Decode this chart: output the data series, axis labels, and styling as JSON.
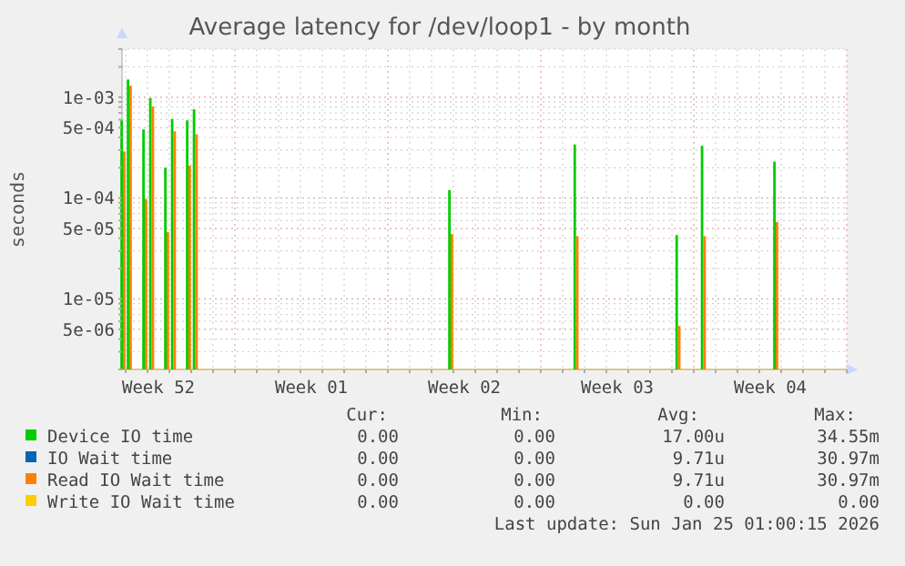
{
  "chart_data": {
    "type": "bar",
    "title": "Average latency for /dev/loop1 - by month",
    "ylabel": "seconds",
    "log": "y",
    "grid": true,
    "legend": "bottom",
    "xlim": [
      "2025-12-23T20:00",
      "2026-01-26T00:00"
    ],
    "ylim": [
      2e-06,
      0.003
    ],
    "xticks": [
      {
        "value": "2025-12-24T00:00",
        "label": null
      },
      {
        "value": "2025-12-25T00:00",
        "label": null
      },
      {
        "value": "2025-12-25T12:00",
        "label": "Week 52"
      },
      {
        "value": "2025-12-26T00:00",
        "label": null
      },
      {
        "value": "2025-12-27T00:00",
        "label": null
      },
      {
        "value": "2025-12-28T00:00",
        "label": null
      },
      {
        "value": "2025-12-29T00:00",
        "label": null
      },
      {
        "value": "2025-12-30T00:00",
        "label": null
      },
      {
        "value": "2025-12-31T00:00",
        "label": null
      },
      {
        "value": "2026-01-01T00:00",
        "label": null
      },
      {
        "value": "2026-01-01T12:00",
        "label": "Week 01"
      },
      {
        "value": "2026-01-02T00:00",
        "label": null
      },
      {
        "value": "2026-01-03T00:00",
        "label": null
      },
      {
        "value": "2026-01-04T00:00",
        "label": null
      },
      {
        "value": "2026-01-05T00:00",
        "label": null
      },
      {
        "value": "2026-01-06T00:00",
        "label": null
      },
      {
        "value": "2026-01-07T00:00",
        "label": null
      },
      {
        "value": "2026-01-08T00:00",
        "label": null
      },
      {
        "value": "2026-01-08T12:00",
        "label": "Week 02"
      },
      {
        "value": "2026-01-09T00:00",
        "label": null
      },
      {
        "value": "2026-01-10T00:00",
        "label": null
      },
      {
        "value": "2026-01-11T00:00",
        "label": null
      },
      {
        "value": "2026-01-12T00:00",
        "label": null
      },
      {
        "value": "2026-01-13T00:00",
        "label": null
      },
      {
        "value": "2026-01-14T00:00",
        "label": null
      },
      {
        "value": "2026-01-15T00:00",
        "label": null
      },
      {
        "value": "2026-01-15T12:00",
        "label": "Week 03"
      },
      {
        "value": "2026-01-16T00:00",
        "label": null
      },
      {
        "value": "2026-01-17T00:00",
        "label": null
      },
      {
        "value": "2026-01-18T00:00",
        "label": null
      },
      {
        "value": "2026-01-19T00:00",
        "label": null
      },
      {
        "value": "2026-01-20T00:00",
        "label": null
      },
      {
        "value": "2026-01-21T00:00",
        "label": null
      },
      {
        "value": "2026-01-22T00:00",
        "label": null
      },
      {
        "value": "2026-01-22T12:00",
        "label": "Week 04"
      },
      {
        "value": "2026-01-23T00:00",
        "label": null
      },
      {
        "value": "2026-01-24T00:00",
        "label": null
      },
      {
        "value": "2026-01-25T00:00",
        "label": null
      },
      {
        "value": "2026-01-26T00:00",
        "label": null
      }
    ],
    "yticks": [
      {
        "value": 2e-06,
        "label": null
      },
      {
        "value": 3e-06,
        "label": null
      },
      {
        "value": 4e-06,
        "label": null
      },
      {
        "value": 5e-06,
        "label": "5e-06"
      },
      {
        "value": 6e-06,
        "label": null
      },
      {
        "value": 7e-06,
        "label": null
      },
      {
        "value": 8e-06,
        "label": null
      },
      {
        "value": 9e-06,
        "label": null
      },
      {
        "value": 1e-05,
        "label": "1e-05"
      },
      {
        "value": 2e-05,
        "label": null
      },
      {
        "value": 3e-05,
        "label": null
      },
      {
        "value": 4e-05,
        "label": null
      },
      {
        "value": 5e-05,
        "label": "5e-05"
      },
      {
        "value": 6e-05,
        "label": null
      },
      {
        "value": 7e-05,
        "label": null
      },
      {
        "value": 8e-05,
        "label": null
      },
      {
        "value": 9e-05,
        "label": null
      },
      {
        "value": 0.0001,
        "label": "1e-04"
      },
      {
        "value": 0.0002,
        "label": null
      },
      {
        "value": 0.0003,
        "label": null
      },
      {
        "value": 0.0004,
        "label": null
      },
      {
        "value": 0.0005,
        "label": "5e-04"
      },
      {
        "value": 0.0006,
        "label": null
      },
      {
        "value": 0.0007,
        "label": null
      },
      {
        "value": 0.0008,
        "label": null
      },
      {
        "value": 0.0009,
        "label": null
      },
      {
        "value": 0.001,
        "label": "1e-03"
      },
      {
        "value": 0.002,
        "label": null
      },
      {
        "value": 0.003,
        "label": null
      }
    ],
    "x": [
      "2025-12-23T21:00",
      "2025-12-24T04:00",
      "2025-12-24T21:00",
      "2025-12-25T04:30",
      "2025-12-25T21:00",
      "2025-12-26T04:30",
      "2025-12-26T21:00",
      "2025-12-27T04:30",
      "2026-01-07T21:00",
      "2026-01-13T14:40",
      "2026-01-18T06:40",
      "2026-01-19T10:30",
      "2026-01-22T18:00"
    ],
    "series": [
      {
        "name": "Device IO time",
        "color": "#00cc00",
        "values": [
          0.00059,
          0.0015,
          0.00048,
          0.00098,
          0.0002,
          0.00061,
          0.00059,
          0.00076,
          0.00012,
          0.00034,
          4.3e-05,
          0.00033,
          0.00023
        ]
      },
      {
        "name": "IO Wait time",
        "color": "#0066b3",
        "values": [
          null,
          null,
          null,
          null,
          null,
          null,
          null,
          null,
          null,
          null,
          null,
          null,
          null
        ]
      },
      {
        "name": "Read IO Wait time",
        "color": "#ff8000",
        "values": [
          0.00029,
          0.0013,
          9.8e-05,
          0.00081,
          4.6e-05,
          0.00046,
          0.00021,
          0.00043,
          4.4e-05,
          4.2e-05,
          5.4e-06,
          4.2e-05,
          5.8e-05
        ]
      },
      {
        "name": "Write IO Wait time",
        "color": "#ffcc00",
        "values": [
          null,
          null,
          null,
          null,
          null,
          null,
          null,
          null,
          null,
          null,
          null,
          null,
          null
        ]
      }
    ],
    "annotations": [
      "Cur:",
      "Min:",
      "Avg:",
      "Max:",
      "0.00",
      "0.00",
      "17.00u",
      "34.55m",
      "0.00",
      "0.00",
      "9.71u",
      "30.97m",
      "0.00",
      "0.00",
      "9.71u",
      "30.97m",
      "0.00",
      "0.00",
      "0.00",
      "0.00",
      "Last update: Sun Jan 25 01:00:15 2026"
    ]
  }
}
